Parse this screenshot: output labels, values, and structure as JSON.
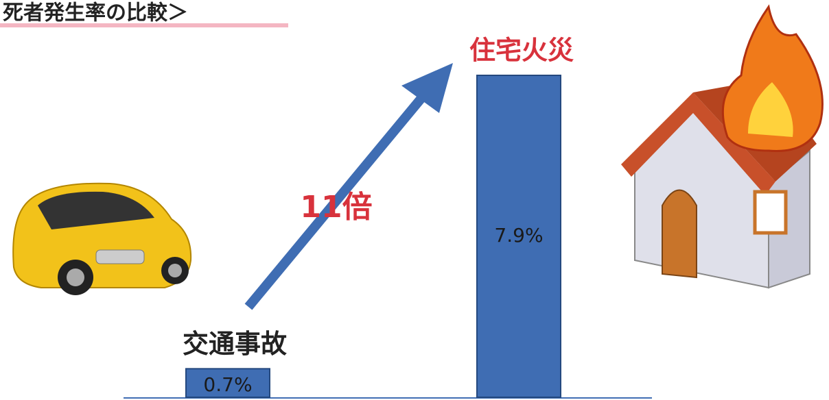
{
  "chart_data": {
    "type": "bar",
    "title": "死者発生率の比較＞",
    "categories": [
      "交通事故",
      "住宅火災"
    ],
    "category_colors": [
      "#222222",
      "#d8323c"
    ],
    "values": [
      0.7,
      7.9
    ],
    "value_labels": [
      "0.7%",
      "7.9%"
    ],
    "color": "#3f6db3",
    "annotation": "11倍"
  }
}
